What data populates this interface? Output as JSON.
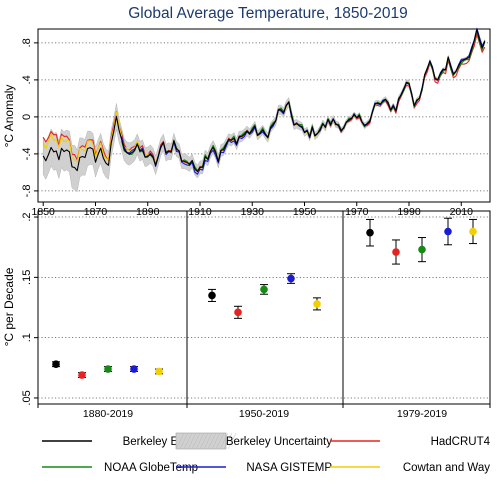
{
  "title": "Global Average Temperature, 1850-2019",
  "colors": {
    "berkeley": "#000000",
    "uncertainty_fill": "#d0d0d0",
    "uncertainty_stroke": "#a8a8a8",
    "hadcrut": "#e8231f",
    "noaa": "#158a15",
    "nasa": "#1b1bd6",
    "cowtan": "#f2cf00",
    "title": "#1c3a6e"
  },
  "chart_data": [
    {
      "type": "line",
      "title": "Global Average Temperature, 1850-2019",
      "ylabel": "°C Anomaly",
      "xlabel": "",
      "xlim": [
        1848,
        2021
      ],
      "ylim": [
        -0.92,
        0.95
      ],
      "xticks": [
        1850,
        1870,
        1890,
        1910,
        1930,
        1950,
        1970,
        1990,
        2010
      ],
      "yticks": [
        -0.8,
        -0.4,
        0,
        0.4,
        0.8
      ],
      "ytick_labels": [
        "-.8",
        "-.4",
        "0",
        ".4",
        ".8"
      ],
      "grid": "horizontal dotted",
      "anchors": {
        "years": [
          1850,
          1855,
          1860,
          1862,
          1865,
          1868,
          1870,
          1872,
          1875,
          1877,
          1878,
          1880,
          1883,
          1886,
          1890,
          1893,
          1896,
          1898,
          1900,
          1903,
          1905,
          1908,
          1911,
          1915,
          1917,
          1920,
          1925,
          1930,
          1935,
          1938,
          1940,
          1944,
          1946,
          1950,
          1955,
          1960,
          1965,
          1970,
          1975,
          1977,
          1980,
          1985,
          1988,
          1990,
          1992,
          1995,
          1998,
          2000,
          2005,
          2008,
          2010,
          2014,
          2015,
          2016,
          2018,
          2019
        ],
        "berkeley": [
          -0.45,
          -0.4,
          -0.42,
          -0.6,
          -0.38,
          -0.4,
          -0.42,
          -0.38,
          -0.5,
          -0.22,
          0.02,
          -0.28,
          -0.38,
          -0.35,
          -0.42,
          -0.5,
          -0.3,
          -0.38,
          -0.28,
          -0.45,
          -0.48,
          -0.55,
          -0.5,
          -0.3,
          -0.45,
          -0.3,
          -0.22,
          -0.14,
          -0.2,
          -0.1,
          0.04,
          0.1,
          -0.05,
          -0.18,
          -0.15,
          -0.05,
          -0.1,
          -0.02,
          -0.05,
          0.12,
          0.15,
          0.1,
          0.32,
          0.38,
          0.15,
          0.3,
          0.6,
          0.38,
          0.6,
          0.48,
          0.65,
          0.7,
          0.8,
          0.92,
          0.78,
          0.82
        ],
        "half_width": [
          0.2,
          0.2,
          0.22,
          0.24,
          0.2,
          0.18,
          0.16,
          0.16,
          0.15,
          0.14,
          0.14,
          0.12,
          0.12,
          0.11,
          0.1,
          0.1,
          0.09,
          0.09,
          0.08,
          0.08,
          0.08,
          0.07,
          0.07,
          0.07,
          0.07,
          0.06,
          0.06,
          0.05,
          0.05,
          0.05,
          0.05,
          0.05,
          0.05,
          0.04,
          0.04,
          0.04,
          0.03,
          0.03,
          0.03,
          0.03,
          0.03,
          0.03,
          0.03,
          0.03,
          0.03,
          0.02,
          0.02,
          0.02,
          0.02,
          0.02,
          0.02,
          0.02,
          0.02,
          0.02,
          0.02,
          0.02
        ]
      },
      "series_offsets": [
        {
          "name": "Berkeley Earth",
          "color": "#000000",
          "offset": [
            [
              1850,
              0
            ],
            [
              2019,
              0
            ]
          ]
        },
        {
          "name": "HadCRUT4",
          "color": "#e8231f",
          "offset": [
            [
              1850,
              0.2
            ],
            [
              1870,
              0.08
            ],
            [
              1900,
              0.0
            ],
            [
              1950,
              0.0
            ],
            [
              2000,
              -0.03
            ],
            [
              2019,
              -0.05
            ]
          ]
        },
        {
          "name": "NOAA GlobeTemp",
          "color": "#158a15",
          "offset": [
            [
              1880,
              -0.01
            ],
            [
              1910,
              0.01
            ],
            [
              1950,
              0.01
            ],
            [
              2000,
              -0.01
            ],
            [
              2019,
              -0.02
            ]
          ]
        },
        {
          "name": "NASA GISTEMP",
          "color": "#1b1bd6",
          "offset": [
            [
              1880,
              0.02
            ],
            [
              1910,
              -0.03
            ],
            [
              1950,
              0.0
            ],
            [
              2000,
              0.0
            ],
            [
              2019,
              0.02
            ]
          ]
        },
        {
          "name": "Cowtan and Way",
          "color": "#f2cf00",
          "offset": [
            [
              1850,
              0.15
            ],
            [
              1870,
              0.06
            ],
            [
              1900,
              -0.01
            ],
            [
              1950,
              0.0
            ],
            [
              2000,
              0.0
            ],
            [
              2019,
              0.0
            ]
          ]
        }
      ]
    },
    {
      "type": "scatter",
      "ylabel": "°C per Decade",
      "xlabel": "",
      "ylim": [
        0.05,
        0.2
      ],
      "yticks": [
        0.05,
        0.1,
        0.15,
        0.2
      ],
      "ytick_labels": [
        ".05",
        ".1",
        ".15",
        ".2"
      ],
      "grid": "horizontal dotted",
      "categories": [
        "1880-2019",
        "1950-2019",
        "1979-2019"
      ],
      "series": [
        {
          "name": "Berkeley Earth",
          "color": "#000000",
          "values": [
            0.078,
            0.135,
            0.187
          ],
          "err": [
            0.002,
            0.005,
            0.011
          ]
        },
        {
          "name": "HadCRUT4",
          "color": "#e8231f",
          "values": [
            0.069,
            0.121,
            0.171
          ],
          "err": [
            0.002,
            0.005,
            0.01
          ]
        },
        {
          "name": "NOAA GlobeTemp",
          "color": "#158a15",
          "values": [
            0.074,
            0.14,
            0.173
          ],
          "err": [
            0.002,
            0.004,
            0.01
          ]
        },
        {
          "name": "NASA GISTEMP",
          "color": "#1b1bd6",
          "values": [
            0.074,
            0.149,
            0.188
          ],
          "err": [
            0.002,
            0.004,
            0.011
          ]
        },
        {
          "name": "Cowtan and Way",
          "color": "#f2cf00",
          "values": [
            0.072,
            0.128,
            0.188
          ],
          "err": [
            0.002,
            0.005,
            0.01
          ]
        }
      ]
    }
  ],
  "legend": {
    "placement": "bottom",
    "items": [
      {
        "label": "Berkeley Earth",
        "kind": "line",
        "color": "#000000"
      },
      {
        "label": "Berkeley Uncertainty",
        "kind": "band",
        "color": "#d0d0d0"
      },
      {
        "label": "HadCRUT4",
        "kind": "line",
        "color": "#e8231f"
      },
      {
        "label": "NOAA GlobeTemp",
        "kind": "line",
        "color": "#158a15"
      },
      {
        "label": "NASA GISTEMP",
        "kind": "line",
        "color": "#1b1bd6"
      },
      {
        "label": "Cowtan and Way",
        "kind": "line",
        "color": "#f2cf00"
      }
    ]
  }
}
